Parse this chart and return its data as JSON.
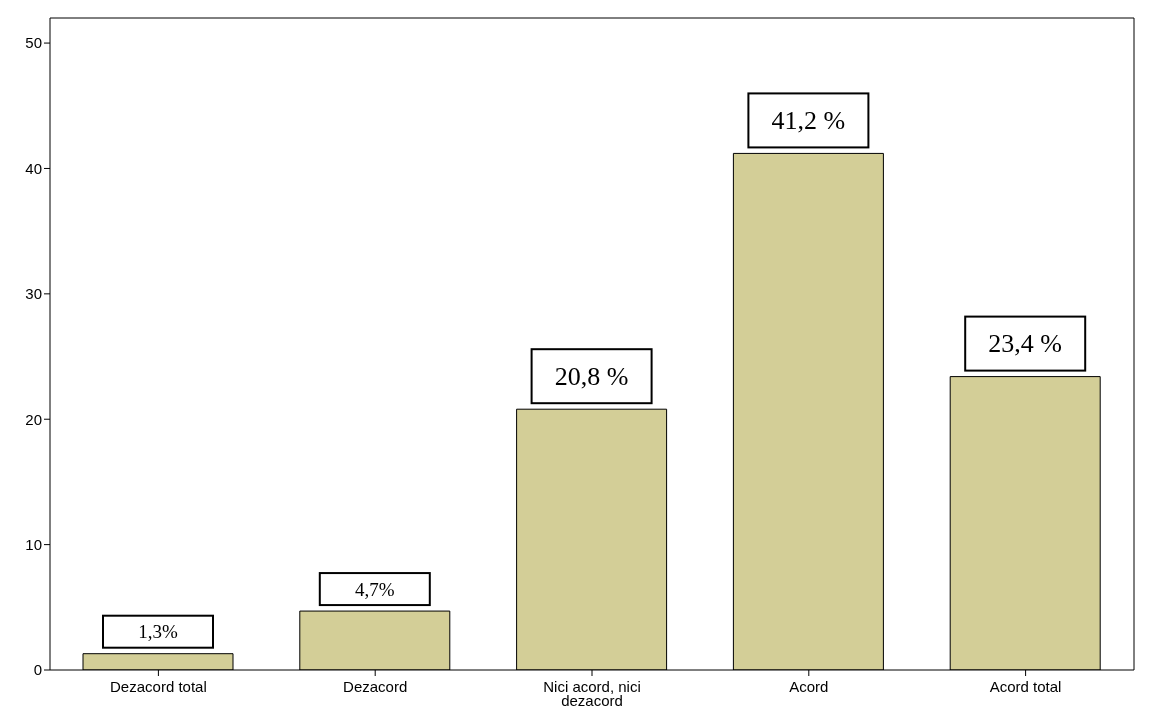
{
  "chart_data": {
    "type": "bar",
    "categories": [
      "Dezacord total",
      "Dezacord",
      "Nici acord, nici dezacord",
      "Acord",
      "Acord total"
    ],
    "values": [
      1.3,
      4.7,
      20.8,
      41.2,
      23.4
    ],
    "value_labels": [
      "1,3%",
      "4,7%",
      "20,8 %",
      "41,2 %",
      "23,4 %"
    ],
    "color": "#d3ce97",
    "ylim": [
      0,
      52
    ],
    "yticks": [
      0,
      10,
      20,
      30,
      40,
      50
    ],
    "grid": false
  }
}
